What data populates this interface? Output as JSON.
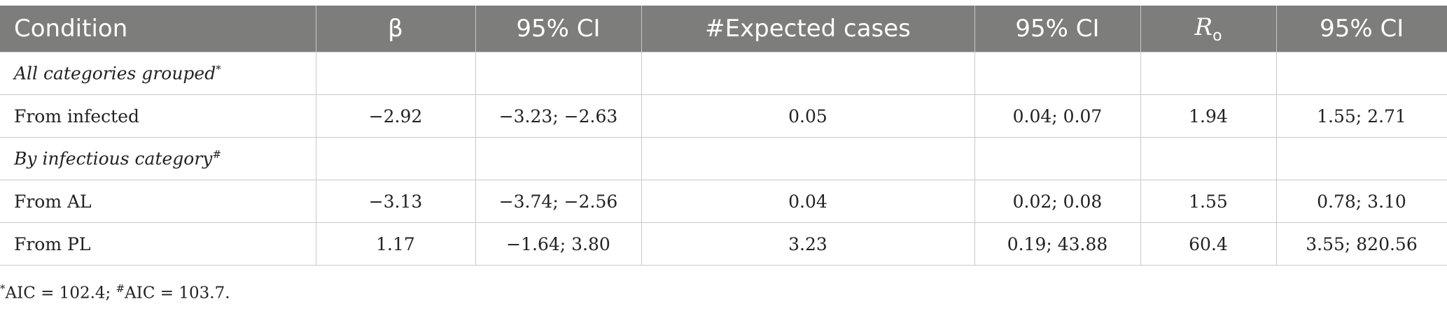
{
  "header": {
    "condition": "Condition",
    "beta": "β",
    "ci1": "95% CI",
    "expected": "#Expected cases",
    "ci2": "95% CI",
    "r_main": "R",
    "r_sub": "o",
    "ci3": "95% CI"
  },
  "sections": [
    {
      "label": "All categories grouped",
      "mark": "*",
      "rows": [
        {
          "condition": "From infected",
          "beta": "−2.92",
          "ci1": "−3.23; −2.63",
          "expected": "0.05",
          "ci2": "0.04; 0.07",
          "r0": "1.94",
          "ci3": "1.55; 2.71"
        }
      ]
    },
    {
      "label": "By infectious category",
      "mark": "#",
      "rows": [
        {
          "condition": "From AL",
          "beta": "−3.13",
          "ci1": "−3.74; −2.56",
          "expected": "0.04",
          "ci2": "0.02; 0.08",
          "r0": "1.55",
          "ci3": "0.78; 3.10"
        },
        {
          "condition": "From PL",
          "beta": "1.17",
          "ci1": "−1.64; 3.80",
          "expected": "3.23",
          "ci2": "0.19; 43.88",
          "r0": "60.4",
          "ci3": "3.55; 820.56"
        }
      ]
    }
  ],
  "footnote": {
    "mark1": "*",
    "text1": "AIC = 102.4; ",
    "mark2": "#",
    "text2": "AIC = 103.7."
  }
}
